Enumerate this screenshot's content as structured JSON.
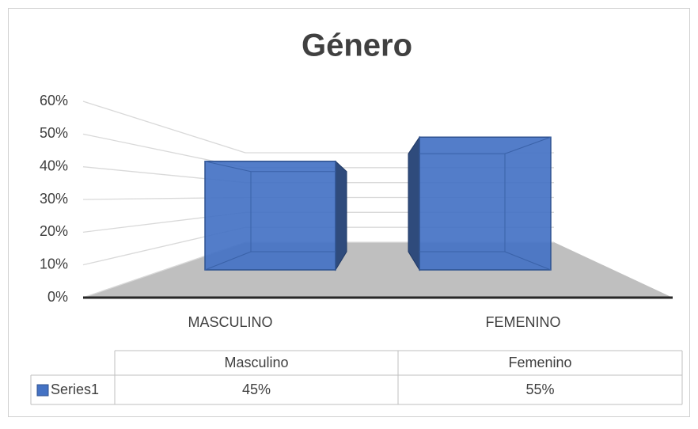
{
  "chart_data": {
    "type": "bar3d",
    "title": "Género",
    "categories": [
      "MASCULINO",
      "FEMENINO"
    ],
    "series": [
      {
        "name": "Series1",
        "color": "#4472c4",
        "values": [
          45,
          55
        ],
        "value_labels": [
          "45%",
          "55%"
        ]
      }
    ],
    "table_headers": [
      "Masculino",
      "Femenino"
    ],
    "ylim": [
      0,
      60
    ],
    "yticks": [
      {
        "value": 0,
        "label": "0%"
      },
      {
        "value": 10,
        "label": "10%"
      },
      {
        "value": 20,
        "label": "20%"
      },
      {
        "value": 30,
        "label": "30%"
      },
      {
        "value": 40,
        "label": "40%"
      },
      {
        "value": 50,
        "label": "50%"
      },
      {
        "value": 60,
        "label": "60%"
      }
    ],
    "grid": true,
    "data_table": true
  }
}
